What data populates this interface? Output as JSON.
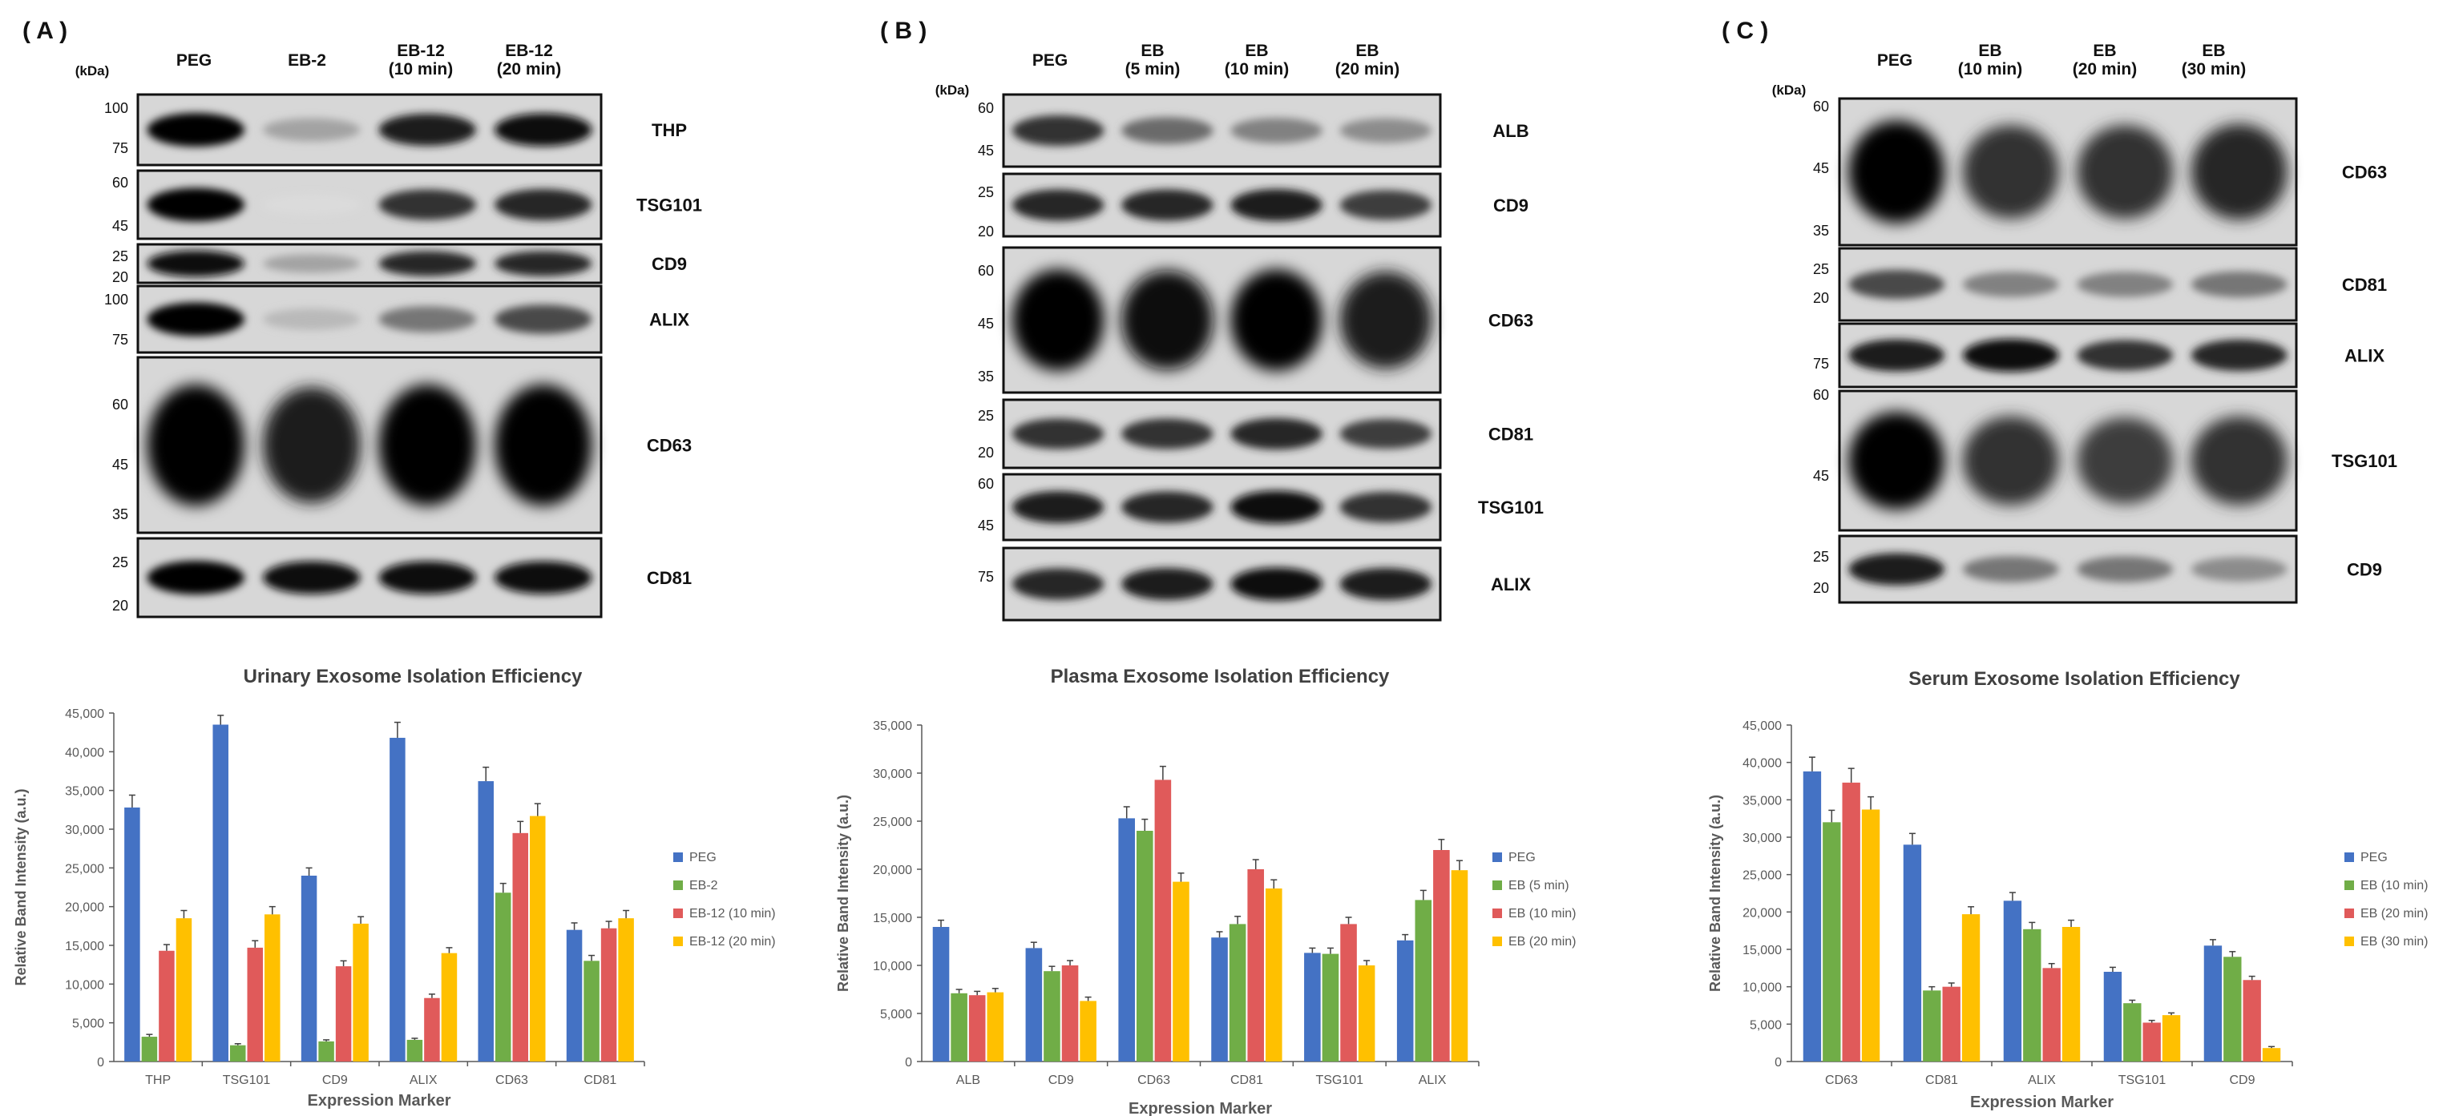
{
  "colors": {
    "PEG": "#4472c4",
    "s2": "#70ad47",
    "s3": "#e05a5a",
    "s4": "#ffc000",
    "axis": "#595959",
    "label": "#595959",
    "title": "#404040",
    "error": "#404040"
  },
  "panels": [
    {
      "label": "( A )",
      "blot": {
        "kda": "(kDa)",
        "lanes": [
          [
            "PEG"
          ],
          [
            "EB-2"
          ],
          [
            "EB-12",
            "(10 min)"
          ],
          [
            "EB-12",
            "(20 min)"
          ]
        ],
        "strips": [
          {
            "name": "THP",
            "markers": [
              "100",
              "75"
            ]
          },
          {
            "name": "TSG101",
            "markers": [
              "60",
              "45"
            ]
          },
          {
            "name": "CD9",
            "markers": [
              "25",
              "20"
            ]
          },
          {
            "name": "ALIX",
            "markers": [
              "100",
              "75"
            ]
          },
          {
            "name": "CD63",
            "markers": [
              "60",
              "45",
              "35"
            ]
          },
          {
            "name": "CD81",
            "markers": [
              "25",
              "20"
            ]
          }
        ]
      }
    },
    {
      "label": "( B )",
      "blot": {
        "kda": "(kDa)",
        "lanes": [
          [
            "PEG"
          ],
          [
            "EB",
            "(5 min)"
          ],
          [
            "EB",
            "(10 min)"
          ],
          [
            "EB",
            "(20 min)"
          ]
        ],
        "strips": [
          {
            "name": "ALB",
            "markers": [
              "60",
              "45"
            ]
          },
          {
            "name": "CD9",
            "markers": [
              "25",
              "20"
            ]
          },
          {
            "name": "CD63",
            "markers": [
              "60",
              "45",
              "35"
            ]
          },
          {
            "name": "CD81",
            "markers": [
              "25",
              "20"
            ]
          },
          {
            "name": "TSG101",
            "markers": [
              "60",
              "45"
            ]
          },
          {
            "name": "ALIX",
            "markers": [
              "75"
            ]
          }
        ]
      }
    },
    {
      "label": "( C )",
      "blot": {
        "kda": "(kDa)",
        "lanes": [
          [
            "PEG"
          ],
          [
            "EB",
            "(10 min)"
          ],
          [
            "EB",
            "(20 min)"
          ],
          [
            "EB",
            "(30 min)"
          ]
        ],
        "strips": [
          {
            "name": "CD63",
            "markers": [
              "60",
              "45",
              "35"
            ]
          },
          {
            "name": "CD81",
            "markers": [
              "25",
              "20"
            ]
          },
          {
            "name": "ALIX",
            "markers": [
              "75"
            ]
          },
          {
            "name": "TSG101",
            "markers": [
              "60",
              "45"
            ]
          },
          {
            "name": "CD9",
            "markers": [
              "25",
              "20"
            ]
          }
        ]
      }
    }
  ],
  "chart_data": [
    {
      "type": "bar",
      "title": "Urinary Exosome Isolation Efficiency",
      "xlabel": "Expression Marker",
      "ylabel": "Relative Band Intensity (a.u.)",
      "ylim": [
        0,
        45000
      ],
      "yticks": [
        "0",
        "5,000",
        "10,000",
        "15,000",
        "20,000",
        "25,000",
        "30,000",
        "35,000",
        "40,000",
        "45,000"
      ],
      "legend_position": "right",
      "categories": [
        "THP",
        "TSG101",
        "CD9",
        "ALIX",
        "CD63",
        "CD81"
      ],
      "series": [
        {
          "name": "PEG",
          "values": [
            32800,
            43500,
            24000,
            41800,
            36200,
            17000
          ],
          "errors": [
            1600,
            1200,
            1000,
            2000,
            1800,
            900
          ]
        },
        {
          "name": "EB-2",
          "values": [
            3200,
            2100,
            2600,
            2800,
            21800,
            13000
          ],
          "errors": [
            300,
            200,
            200,
            200,
            1200,
            700
          ]
        },
        {
          "name": "EB-12 (10 min)",
          "values": [
            14300,
            14700,
            12300,
            8200,
            29500,
            17200
          ],
          "errors": [
            800,
            900,
            700,
            500,
            1500,
            900
          ]
        },
        {
          "name": "EB-12 (20 min)",
          "values": [
            18500,
            19000,
            17800,
            14000,
            31700,
            18500
          ],
          "errors": [
            1000,
            1000,
            900,
            700,
            1600,
            1000
          ]
        }
      ]
    },
    {
      "type": "bar",
      "title": "Plasma Exosome Isolation Efficiency",
      "xlabel": "Expression Marker",
      "ylabel": "Relative Band Intensity (a.u.)",
      "ylim": [
        0,
        35000
      ],
      "yticks": [
        "0",
        "5,000",
        "10,000",
        "15,000",
        "20,000",
        "25,000",
        "30,000",
        "35,000"
      ],
      "legend_position": "right",
      "categories": [
        "ALB",
        "CD9",
        "CD63",
        "CD81",
        "TSG101",
        "ALIX"
      ],
      "series": [
        {
          "name": "PEG",
          "values": [
            14000,
            11800,
            25300,
            12900,
            11300,
            12600
          ],
          "errors": [
            700,
            600,
            1200,
            600,
            500,
            600
          ]
        },
        {
          "name": "EB (5 min)",
          "values": [
            7100,
            9400,
            24000,
            14300,
            11200,
            16800
          ],
          "errors": [
            400,
            500,
            1200,
            800,
            600,
            1000
          ]
        },
        {
          "name": "EB (10 min)",
          "values": [
            6900,
            10000,
            29300,
            20000,
            14300,
            22000
          ],
          "errors": [
            400,
            500,
            1400,
            1000,
            700,
            1100
          ]
        },
        {
          "name": "EB (20 min)",
          "values": [
            7200,
            6300,
            18700,
            18000,
            10000,
            19900
          ],
          "errors": [
            400,
            400,
            900,
            900,
            500,
            1000
          ]
        }
      ]
    },
    {
      "type": "bar",
      "title": "Serum Exosome Isolation Efficiency",
      "xlabel": "Expression Marker",
      "ylabel": "Relative Band Intensity (a.u.)",
      "ylim": [
        0,
        45000
      ],
      "yticks": [
        "0",
        "5,000",
        "10,000",
        "15,000",
        "20,000",
        "25,000",
        "30,000",
        "35,000",
        "40,000",
        "45,000"
      ],
      "legend_position": "right",
      "categories": [
        "CD63",
        "CD81",
        "ALIX",
        "TSG101",
        "CD9"
      ],
      "series": [
        {
          "name": "PEG",
          "values": [
            38800,
            29000,
            21500,
            12000,
            15500
          ],
          "errors": [
            1900,
            1500,
            1100,
            600,
            800
          ]
        },
        {
          "name": "EB (10 min)",
          "values": [
            32000,
            9500,
            17700,
            7800,
            14000
          ],
          "errors": [
            1600,
            500,
            900,
            400,
            700
          ]
        },
        {
          "name": "EB (20 min)",
          "values": [
            37300,
            10000,
            12500,
            5200,
            10900
          ],
          "errors": [
            1900,
            500,
            600,
            300,
            500
          ]
        },
        {
          "name": "EB (30 min)",
          "values": [
            33700,
            19700,
            18000,
            6200,
            1800
          ],
          "errors": [
            1700,
            1000,
            900,
            300,
            200
          ]
        }
      ]
    }
  ]
}
